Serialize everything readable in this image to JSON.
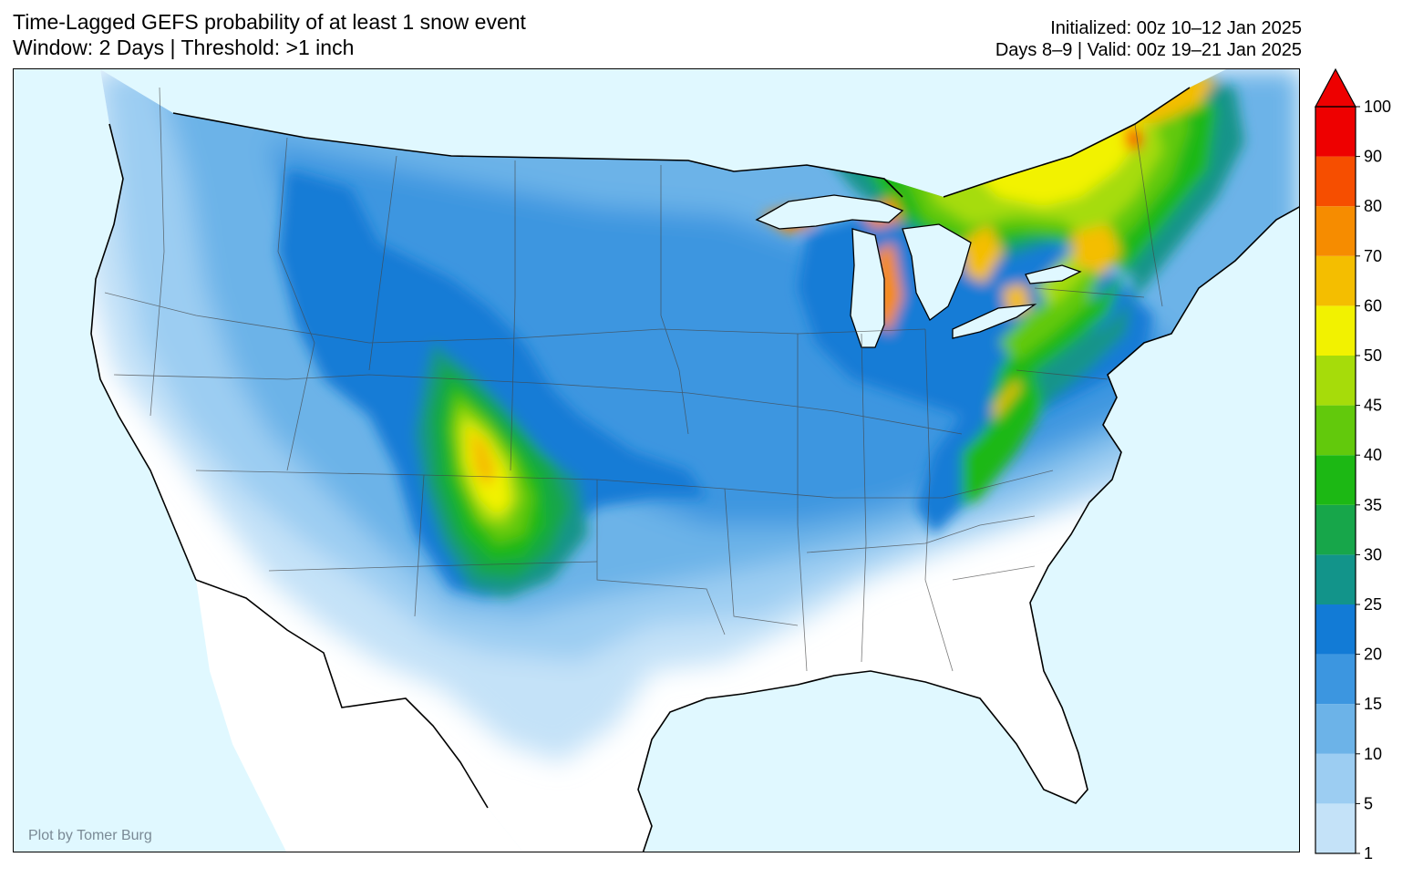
{
  "header": {
    "title_line1": "Time-Lagged GEFS probability of at least 1 snow event",
    "title_line2": "Window: 2 Days | Threshold: >1 inch",
    "init_line": "Initialized: 00z 10–12 Jan 2025",
    "valid_line": "Days 8–9 | Valid: 00z 19–21 Jan 2025"
  },
  "credit": "Plot by Tomer Burg",
  "colors": {
    "ocean": "#e0f8ff",
    "land": "#ffffff",
    "lakes": "#e0f8ff"
  },
  "colorbar": {
    "levels": [
      1,
      5,
      10,
      15,
      20,
      25,
      30,
      35,
      40,
      45,
      50,
      60,
      70,
      80,
      90,
      100
    ],
    "colors": [
      "#c4e2f8",
      "#9ccdf2",
      "#6cb3e8",
      "#3c96e0",
      "#127bd6",
      "#12948a",
      "#17a64a",
      "#1cb814",
      "#62c90c",
      "#a6dc0a",
      "#f2f200",
      "#f4be00",
      "#f68c00",
      "#f64e00",
      "#ee0000"
    ],
    "extend": "max"
  }
}
